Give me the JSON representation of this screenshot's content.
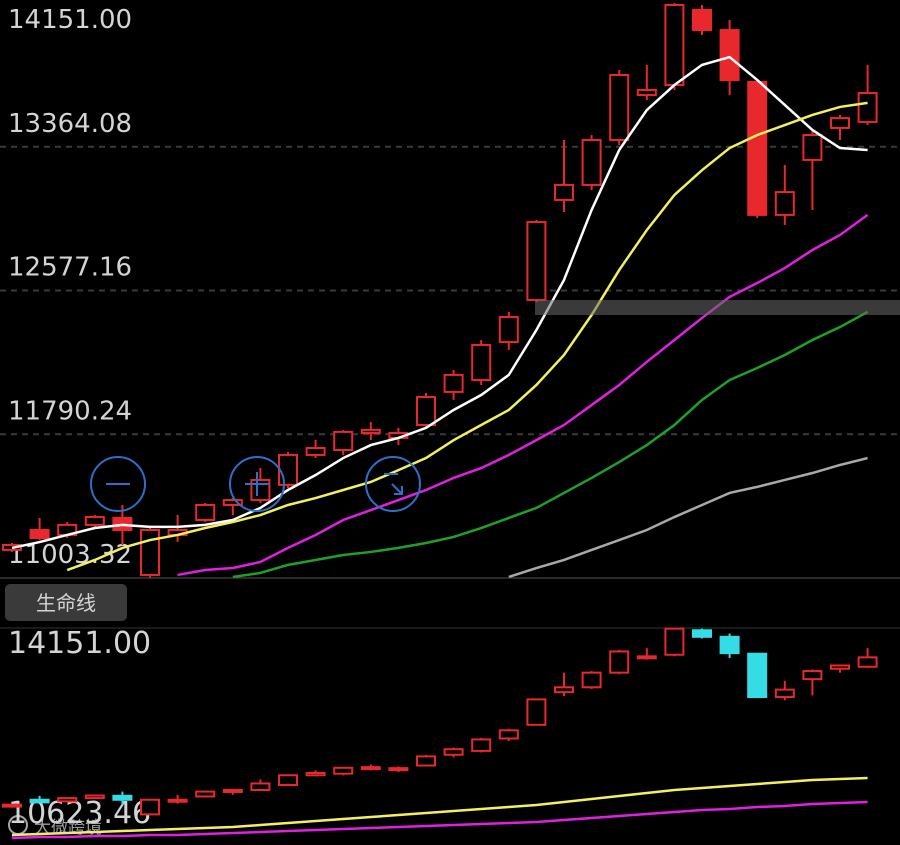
{
  "chart_data": [
    {
      "type": "candlestick",
      "open": [
        11157,
        11266,
        11239,
        11294,
        11332,
        11020,
        11239,
        11321,
        11403,
        11430,
        11513,
        11677,
        11704,
        11797,
        11770,
        11841,
        12022,
        12087,
        12295,
        12525,
        13073,
        13155,
        13401,
        13647,
        13702,
        14113,
        14003,
        13719,
        12991,
        13292,
        13467,
        13500
      ],
      "close": [
        11184,
        11222,
        11294,
        11337,
        11266,
        11266,
        11266,
        11403,
        11430,
        11540,
        11677,
        11715,
        11803,
        11814,
        11797,
        11994,
        12115,
        12279,
        12432,
        12952,
        13155,
        13401,
        13757,
        13675,
        14140,
        14003,
        13729,
        12991,
        13116,
        13428,
        13521,
        13658
      ],
      "high": [
        11195,
        11332,
        11310,
        11348,
        11403,
        11277,
        11348,
        11414,
        11441,
        11606,
        11693,
        11759,
        11814,
        11857,
        11825,
        12016,
        12142,
        12306,
        12460,
        12963,
        13401,
        13428,
        13784,
        13812,
        14151,
        14140,
        14058,
        13729,
        13264,
        13456,
        13538,
        13812
      ],
      "low": [
        11146,
        11211,
        11222,
        11277,
        11184,
        11003,
        11201,
        11310,
        11348,
        11414,
        11496,
        11660,
        11677,
        11759,
        11732,
        11825,
        11978,
        12060,
        12252,
        12514,
        13007,
        13127,
        13374,
        13620,
        13675,
        13976,
        13647,
        12974,
        12936,
        13018,
        13401,
        13483
      ],
      "up_color": "#e8282c",
      "down_color": "#e8282c",
      "ylim": [
        11003.32,
        14151.0
      ],
      "yticks": [
        {
          "value": 14151.0,
          "label": "14151.00"
        },
        {
          "value": 13364.08,
          "label": "13364.08"
        },
        {
          "value": 12577.16,
          "label": "12577.16"
        },
        {
          "value": 11790.24,
          "label": "11790.24"
        },
        {
          "value": 11003.32,
          "label": "11003.32"
        }
      ],
      "grid": true,
      "series": [
        {
          "color": "#ffffff",
          "values": [
            11168,
            11200,
            11239,
            11277,
            11294,
            11283,
            11283,
            11294,
            11321,
            11387,
            11485,
            11567,
            11660,
            11731,
            11770,
            11825,
            11923,
            12005,
            12115,
            12361,
            12635,
            13018,
            13346,
            13565,
            13702,
            13812,
            13855,
            13730,
            13593,
            13456,
            13357,
            13346
          ]
        },
        {
          "color": "#f2f060",
          "values": [
            null,
            null,
            11047,
            11102,
            11168,
            11211,
            11239,
            11277,
            11310,
            11348,
            11403,
            11441,
            11485,
            11529,
            11594,
            11660,
            11758,
            11841,
            11923,
            12060,
            12224,
            12443,
            12689,
            12908,
            13100,
            13236,
            13357,
            13428,
            13483,
            13538,
            13582,
            13604
          ]
        },
        {
          "color": "#e020e0",
          "values": [
            null,
            null,
            null,
            null,
            null,
            null,
            11020,
            11047,
            11058,
            11091,
            11168,
            11239,
            11321,
            11375,
            11430,
            11485,
            11551,
            11605,
            11677,
            11758,
            11841,
            11950,
            12060,
            12186,
            12306,
            12427,
            12542,
            12618,
            12700,
            12799,
            12881,
            12991
          ]
        },
        {
          "color": "#1fa02a",
          "values": [
            null,
            null,
            null,
            null,
            null,
            null,
            null,
            null,
            11009,
            11031,
            11075,
            11102,
            11129,
            11146,
            11168,
            11195,
            11228,
            11277,
            11332,
            11387,
            11469,
            11551,
            11638,
            11731,
            11841,
            11978,
            12087,
            12153,
            12224,
            12306,
            12377,
            12460
          ]
        },
        {
          "color": "#a8a8a8",
          "values": [
            null,
            null,
            null,
            null,
            null,
            null,
            null,
            null,
            null,
            null,
            null,
            null,
            null,
            null,
            null,
            null,
            null,
            null,
            11009,
            11058,
            11102,
            11157,
            11211,
            11266,
            11337,
            11403,
            11469,
            11502,
            11540,
            11578,
            11622,
            11660
          ]
        }
      ]
    },
    {
      "type": "candlestick",
      "up_color": "#e8282c",
      "down_color": "#35dce6",
      "ylim": [
        10623.46,
        14151.0
      ],
      "yticks": [
        {
          "value": 14151.0,
          "label": "14151.00"
        },
        {
          "value": 10623.46,
          "label": "10623.46"
        }
      ],
      "grid": false,
      "series": [
        {
          "color": "#f2f060",
          "values": [
            10673,
            10690,
            10707,
            10724,
            10741,
            10757,
            10774,
            10791,
            10808,
            10841,
            10875,
            10909,
            10942,
            10976,
            11009,
            11043,
            11077,
            11110,
            11144,
            11177,
            11228,
            11278,
            11329,
            11379,
            11429,
            11463,
            11497,
            11530,
            11564,
            11597,
            11614,
            11631
          ]
        },
        {
          "color": "#e020e0",
          "values": [
            10623,
            10640,
            10640,
            10657,
            10657,
            10673,
            10673,
            10690,
            10707,
            10724,
            10741,
            10757,
            10774,
            10791,
            10808,
            10825,
            10841,
            10858,
            10875,
            10892,
            10925,
            10959,
            10993,
            11026,
            11060,
            11093,
            11110,
            11144,
            11161,
            11194,
            11211,
            11228
          ]
        }
      ]
    }
  ],
  "tab_label": "生命线",
  "watermark": "大微跨境"
}
